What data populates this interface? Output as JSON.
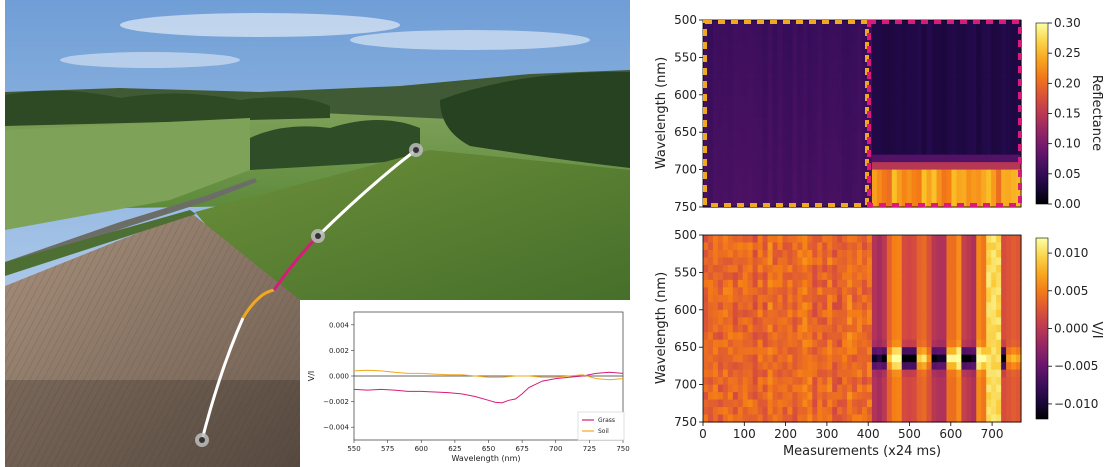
{
  "photo": {
    "description_free": true,
    "path_segments": [
      {
        "name": "start",
        "color": "#ffffff"
      },
      {
        "name": "soil",
        "color": "#f0a820"
      },
      {
        "name": "grass",
        "color": "#d81b7a"
      },
      {
        "name": "end",
        "color": "#ffffff"
      }
    ]
  },
  "chart_data": [
    {
      "id": "inset",
      "type": "line",
      "xlabel": "Wavelength (nm)",
      "ylabel": "V/I",
      "xlim": [
        550,
        750
      ],
      "ylim": [
        -0.005,
        0.005
      ],
      "xticks": [
        550,
        575,
        600,
        625,
        650,
        675,
        700,
        725,
        750
      ],
      "yticks": [
        -0.004,
        -0.002,
        0.0,
        0.002,
        0.004
      ],
      "ytick_labels": [
        "−0.004",
        "−0.002",
        "0.000",
        "0.002",
        "0.004"
      ],
      "legend_position": "lower-right",
      "series": [
        {
          "name": "Grass",
          "color": "#d81b7a",
          "x": [
            550,
            560,
            570,
            580,
            590,
            600,
            610,
            620,
            630,
            640,
            650,
            655,
            660,
            665,
            670,
            675,
            680,
            690,
            700,
            710,
            720,
            730,
            740,
            750
          ],
          "y": [
            -0.00105,
            -0.0011,
            -0.00105,
            -0.0011,
            -0.0012,
            -0.0012,
            -0.00125,
            -0.0013,
            -0.0014,
            -0.0016,
            -0.0019,
            -0.00205,
            -0.0021,
            -0.0019,
            -0.0018,
            -0.0014,
            -0.0009,
            -0.0004,
            -0.0002,
            -0.0001,
            0.0,
            0.0002,
            0.0003,
            0.0002
          ]
        },
        {
          "name": "Soil",
          "color": "#f0a820",
          "x": [
            550,
            560,
            570,
            580,
            590,
            600,
            610,
            620,
            630,
            640,
            650,
            660,
            670,
            680,
            690,
            700,
            710,
            720,
            730,
            740,
            750
          ],
          "y": [
            0.0004,
            0.00045,
            0.0004,
            0.0003,
            0.0002,
            0.0002,
            0.00015,
            0.0001,
            0.0001,
            0.0,
            -0.0001,
            -0.0001,
            0.0,
            0.0,
            -0.0001,
            -0.0001,
            0.0,
            0.0001,
            -0.0002,
            -0.0003,
            -0.0002
          ]
        }
      ]
    },
    {
      "id": "reflectance",
      "type": "heatmap",
      "xlabel": "",
      "ylabel": "Wavelength (nm)",
      "ylim": [
        500,
        750
      ],
      "yticks": [
        500,
        550,
        600,
        650,
        700,
        750
      ],
      "colorbar_label": "Reflectance",
      "colorbar_ticks": [
        0.0,
        0.05,
        0.1,
        0.15,
        0.2,
        0.25,
        0.3
      ],
      "colorbar_tick_labels": [
        "0.00",
        "0.05",
        "0.10",
        "0.15",
        "0.20",
        "0.25",
        "0.30"
      ],
      "vmin": 0.0,
      "vmax": 0.3,
      "colormap": "inferno",
      "regions": [
        {
          "name": "Soil",
          "color": "#f0a820",
          "x_from_fraction": 0.0,
          "x_to_fraction": 0.525
        },
        {
          "name": "Grass",
          "color": "#d81b7a",
          "x_from_fraction": 0.525,
          "x_to_fraction": 1.0
        }
      ]
    },
    {
      "id": "vi",
      "type": "heatmap",
      "xlabel": "Measurements (x24 ms)",
      "ylabel": "Wavelength (nm)",
      "xlim": [
        0,
        770
      ],
      "ylim": [
        500,
        750
      ],
      "xticks": [
        0,
        100,
        200,
        300,
        400,
        500,
        600,
        700
      ],
      "yticks": [
        500,
        550,
        600,
        650,
        700,
        750
      ],
      "colorbar_label": "V/I",
      "colorbar_ticks": [
        -0.01,
        -0.005,
        0.0,
        0.005,
        0.01
      ],
      "colorbar_tick_labels": [
        "−0.010",
        "−0.005",
        "0.000",
        "0.005",
        "0.010"
      ],
      "vmin": -0.012,
      "vmax": 0.012,
      "colormap": "inferno"
    }
  ]
}
